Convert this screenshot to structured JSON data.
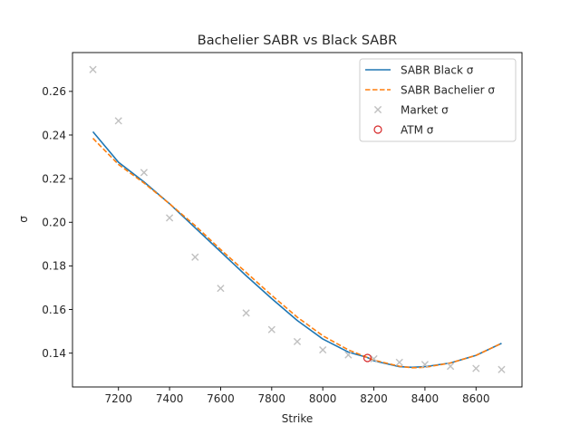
{
  "chart_data": {
    "type": "line",
    "title": "Bachelier SABR vs Black SABR",
    "xlabel": "Strike",
    "ylabel": "σ",
    "xlim": [
      7020,
      8780
    ],
    "ylim": [
      0.1245,
      0.2778
    ],
    "xticks": [
      7200,
      7400,
      7600,
      7800,
      8000,
      8200,
      8400,
      8600
    ],
    "yticks": [
      0.14,
      0.16,
      0.18,
      0.2,
      0.22,
      0.24,
      0.26
    ],
    "ytick_labels": [
      "0.14",
      "0.16",
      "0.18",
      "0.20",
      "0.22",
      "0.24",
      "0.26"
    ],
    "grid": false,
    "legend_position": "top-right",
    "series": [
      {
        "name": "SABR Black σ",
        "kind": "line",
        "color": "#1f77b4",
        "dash": "solid",
        "x": [
          7100,
          7200,
          7300,
          7400,
          7500,
          7600,
          7700,
          7800,
          7900,
          8000,
          8100,
          8175,
          8200,
          8300,
          8350,
          8400,
          8500,
          8600,
          8700
        ],
        "y": [
          0.2415,
          0.2275,
          0.2185,
          0.2085,
          0.1975,
          0.1865,
          0.1755,
          0.165,
          0.155,
          0.1465,
          0.1405,
          0.138,
          0.1365,
          0.1338,
          0.1335,
          0.1338,
          0.1355,
          0.139,
          0.1445
        ]
      },
      {
        "name": "SABR Bachelier σ",
        "kind": "line",
        "color": "#ff7f0e",
        "dash": "dashed",
        "x": [
          7100,
          7200,
          7300,
          7400,
          7500,
          7600,
          7700,
          7800,
          7900,
          8000,
          8100,
          8175,
          8200,
          8300,
          8350,
          8400,
          8500,
          8600,
          8700
        ],
        "y": [
          0.2385,
          0.2265,
          0.218,
          0.2085,
          0.1985,
          0.1875,
          0.177,
          0.1665,
          0.1565,
          0.148,
          0.1415,
          0.138,
          0.1368,
          0.134,
          0.1333,
          0.1335,
          0.1355,
          0.139,
          0.1445
        ]
      },
      {
        "name": "Market σ",
        "kind": "scatter",
        "marker": "x",
        "color": "#c0c0c0",
        "x": [
          7100,
          7200,
          7300,
          7400,
          7500,
          7600,
          7700,
          7800,
          7900,
          8000,
          8100,
          8200,
          8300,
          8400,
          8500,
          8600,
          8700
        ],
        "y": [
          0.27,
          0.2465,
          0.2228,
          0.202,
          0.184,
          0.1697,
          0.1584,
          0.1508,
          0.1453,
          0.1415,
          0.1392,
          0.1374,
          0.1358,
          0.1348,
          0.134,
          0.133,
          0.1325
        ]
      },
      {
        "name": "ATM σ",
        "kind": "scatter",
        "marker": "o",
        "color": "#d62728",
        "x": [
          8175
        ],
        "y": [
          0.1378
        ]
      }
    ]
  }
}
